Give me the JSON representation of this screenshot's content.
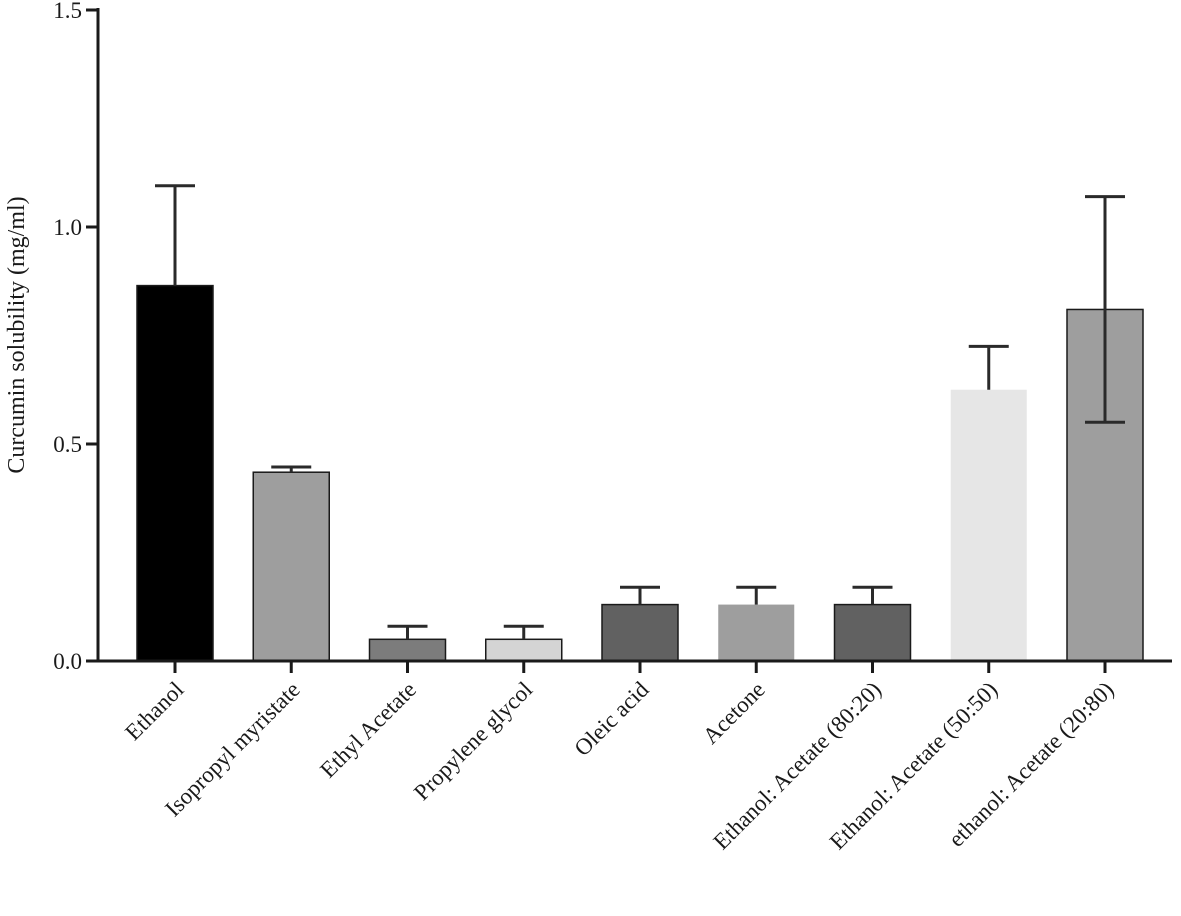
{
  "chart_data": {
    "type": "bar",
    "ylabel": "Curcumin solubility (mg/ml)",
    "xlabel": "",
    "title": "",
    "ylim": [
      0,
      1.5
    ],
    "yticks": [
      "0.0",
      "0.5",
      "1.0",
      "1.5"
    ],
    "ytick_values": [
      0.0,
      0.5,
      1.0,
      1.5
    ],
    "grid": false,
    "legend": "none",
    "categories": [
      "Ethanol",
      "Isopropyl myristate",
      "Ethyl Acetate",
      "Propylene glycol",
      "Oleic acid",
      "Acetone",
      "Ethanol: Acetate (80:20)",
      "Ethanol: Acetate (50:50)",
      "ethanol: Acetate (20:80)"
    ],
    "values": [
      0.865,
      0.435,
      0.05,
      0.05,
      0.13,
      0.13,
      0.13,
      0.625,
      0.81
    ],
    "errors": [
      0.23,
      0.012,
      0.03,
      0.03,
      0.04,
      0.04,
      0.04,
      0.1,
      0.26
    ],
    "error_bars_both_sides": [
      false,
      false,
      false,
      false,
      false,
      false,
      false,
      false,
      true
    ],
    "colors": [
      "#000000",
      "#9e9e9e",
      "#7c7c7c",
      "#d4d4d4",
      "#616161",
      "#9e9e9e",
      "#616161",
      "#e6e6e6",
      "#9e9e9e"
    ],
    "bar_outline": [
      true,
      true,
      true,
      true,
      true,
      false,
      true,
      false,
      true
    ]
  }
}
